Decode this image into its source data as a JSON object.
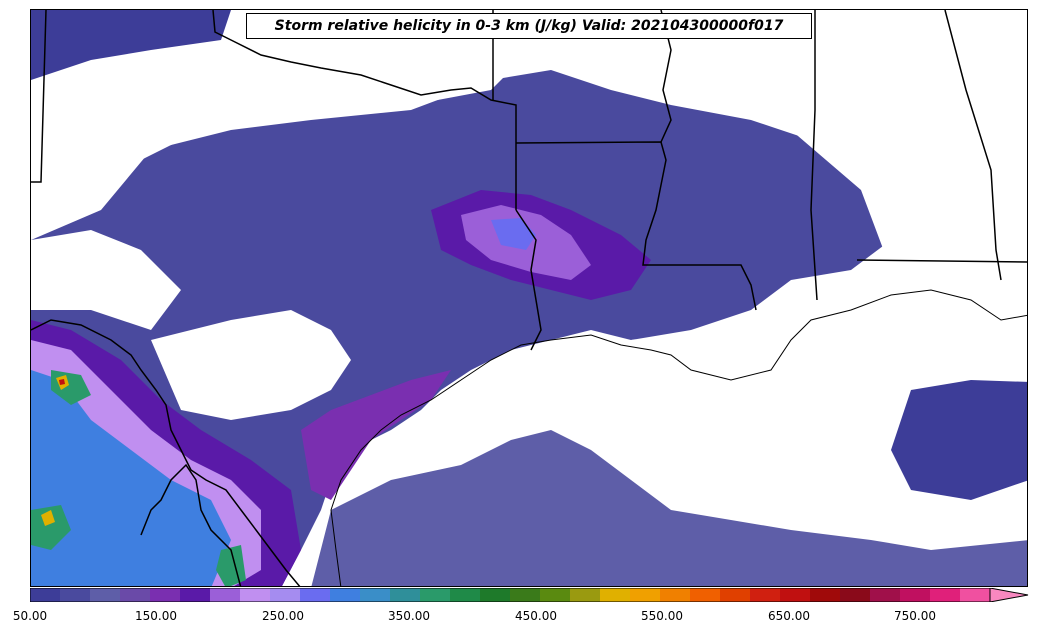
{
  "map": {
    "title": "Storm relative helicity in 0-3 km (J/kg) Valid: 202104300000f017",
    "field": "storm relative helicity 0-3 km",
    "units": "J/kg",
    "valid": "202104300000f017",
    "region": "Texas / Louisiana Gulf Coast"
  },
  "colorbar": {
    "min": 50,
    "max": 800,
    "step": 25,
    "extend": "max",
    "tick_labels": [
      "50.00",
      "150.00",
      "250.00",
      "350.00",
      "450.00",
      "550.00",
      "650.00",
      "750.00"
    ],
    "colors": [
      "#3d3d98",
      "#4a4a9e",
      "#5e5ea8",
      "#6a4aa8",
      "#7a2fb0",
      "#5a1aa8",
      "#9b5fd8",
      "#c08ff0",
      "#a58cf0",
      "#6a6cf0",
      "#3f7fe0",
      "#3a8ec8",
      "#2f8f9a",
      "#2a9a6a",
      "#1f8a48",
      "#1e7a2a",
      "#3a7a1a",
      "#5a8a10",
      "#9a9a10",
      "#e0b000",
      "#f0a000",
      "#f08000",
      "#f06000",
      "#e04000",
      "#d02010",
      "#c01010",
      "#a00a0a",
      "#8a0a1a",
      "#a0104a",
      "#c01060",
      "#e0207a",
      "#f050a0",
      "#f888c0"
    ]
  }
}
